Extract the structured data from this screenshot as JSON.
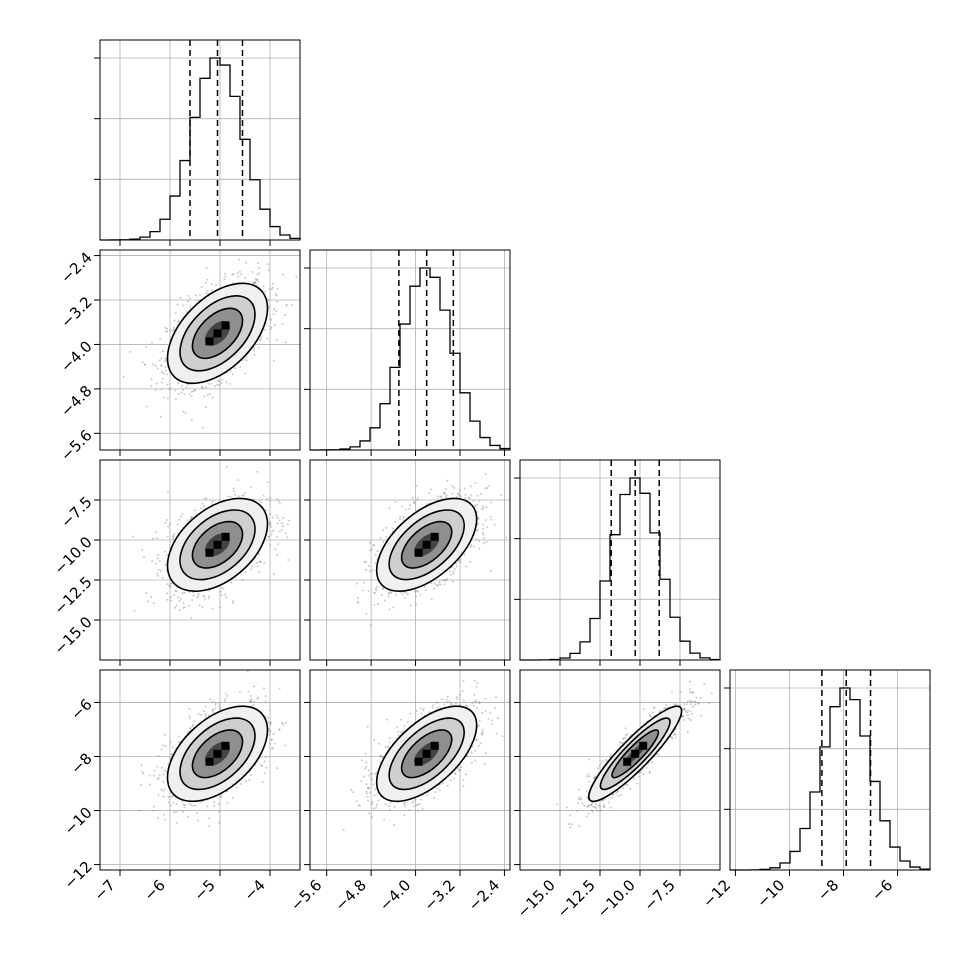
{
  "chart_data": {
    "type": "corner",
    "title": "",
    "n_params": 4,
    "grid": true,
    "quantile_lines": "dashed",
    "params": [
      {
        "range": [
          -7.4,
          -3.4
        ],
        "mean": -5.05,
        "sd": 0.5,
        "quantiles": [
          -5.6,
          -5.05,
          -4.55
        ],
        "ticks": [
          -7,
          -6,
          -5,
          -4
        ],
        "tick_labels": [
          "−7",
          "−6",
          "−5",
          "−4"
        ]
      },
      {
        "range": [
          -5.9,
          -2.3
        ],
        "mean": -3.8,
        "sd": 0.45,
        "quantiles": [
          -4.3,
          -3.8,
          -3.32
        ],
        "ticks": [
          -5.6,
          -4.8,
          -4.0,
          -3.2,
          -2.4
        ],
        "tick_labels": [
          "−5.6",
          "−4.8",
          "−4.0",
          "−3.2",
          "−2.4"
        ]
      },
      {
        "range": [
          -17.5,
          -5.0
        ],
        "mean": -10.3,
        "sd": 1.45,
        "quantiles": [
          -11.8,
          -10.3,
          -8.8
        ],
        "ticks": [
          -15.0,
          -12.5,
          -10.0,
          -7.5
        ],
        "tick_labels": [
          "−15.0",
          "−12.5",
          "−10.0",
          "−7.5"
        ]
      },
      {
        "range": [
          -12.2,
          -4.8
        ],
        "mean": -7.9,
        "sd": 0.88,
        "quantiles": [
          -8.8,
          -7.9,
          -7.0
        ],
        "ticks": [
          -12,
          -10,
          -8,
          -6
        ],
        "tick_labels": [
          "−12",
          "−10",
          "−8",
          "−6"
        ]
      }
    ],
    "correlations": [
      [
        1.0,
        0.5,
        0.45,
        0.5
      ],
      [
        0.5,
        1.0,
        0.55,
        0.6
      ],
      [
        0.45,
        0.55,
        1.0,
        0.9
      ],
      [
        0.5,
        0.6,
        0.9,
        1.0
      ]
    ],
    "histogram_bins": 20,
    "contour_levels": [
      0.5,
      1.0,
      1.5,
      2.0
    ]
  }
}
